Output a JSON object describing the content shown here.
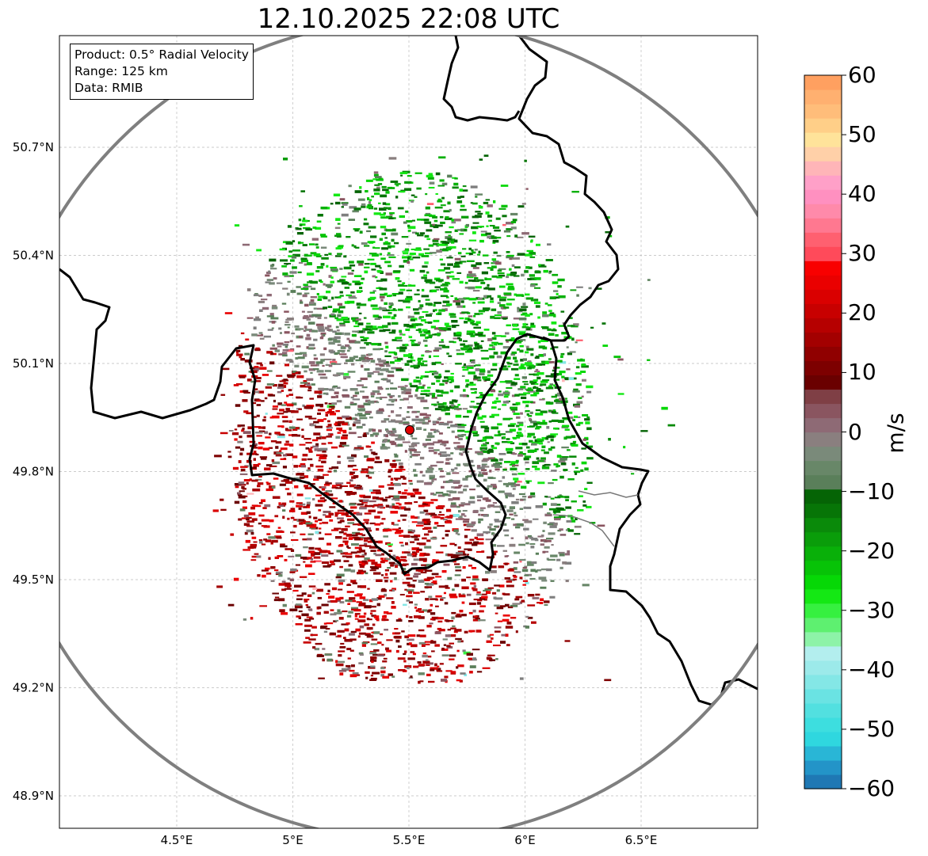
{
  "title": "12.10.2025 22:08 UTC",
  "info_box": {
    "product": "Product: 0.5° Radial Velocity",
    "range": "Range: 125 km",
    "data": "Data: RMIB"
  },
  "map": {
    "lat_ticks": [
      "50.7°N",
      "50.4°N",
      "50.1°N",
      "49.8°N",
      "49.5°N",
      "49.2°N",
      "48.9°N"
    ],
    "lon_ticks": [
      "4.5°E",
      "5°E",
      "5.5°E",
      "6°E",
      "6.5°E"
    ],
    "lat_values": [
      50.7,
      50.4,
      50.1,
      49.8,
      49.5,
      49.2,
      48.9
    ],
    "lon_values": [
      4.5,
      5.0,
      5.5,
      6.0,
      6.5
    ],
    "lon_range": [
      4.0,
      7.0
    ],
    "lat_range": [
      48.8,
      51.0
    ],
    "radar_site": {
      "lon": 5.505,
      "lat": 49.915,
      "marker_color": "#e00000"
    },
    "range_km": 125
  },
  "colorbar": {
    "unit": "m/s",
    "min": -60,
    "max": 60,
    "tick_labels": [
      "60",
      "50",
      "40",
      "30",
      "20",
      "10",
      "0",
      "−10",
      "−20",
      "−30",
      "−40",
      "−50",
      "−60"
    ],
    "colors_bottom_to_top": [
      "#1f78b4",
      "#2394c8",
      "#29b6d6",
      "#2fd7df",
      "#3ddedf",
      "#52e0e0",
      "#6ae3e3",
      "#84e7e6",
      "#9ceaea",
      "#b3eeee",
      "#8df3a8",
      "#5ef070",
      "#36f040",
      "#14e814",
      "#06d806",
      "#07c307",
      "#09b009",
      "#0a9d0a",
      "#0a8a0a",
      "#077507",
      "#056405",
      "#5a7f5a",
      "#688768",
      "#7a8a7a",
      "#8a7f7f",
      "#8e6a75",
      "#8a5560",
      "#7f3f45",
      "#6a0000",
      "#7d0000",
      "#900000",
      "#a30000",
      "#b60000",
      "#c80000",
      "#da0000",
      "#ea0000",
      "#f80000",
      "#ff4a5a",
      "#ff6070",
      "#ff7890",
      "#ff8aaa",
      "#ff90c0",
      "#ffa0c8",
      "#ffb5b8",
      "#ffd0a8",
      "#ffe39a",
      "#ffcf88",
      "#ffbd7a",
      "#ffb070",
      "#ffa060"
    ]
  }
}
